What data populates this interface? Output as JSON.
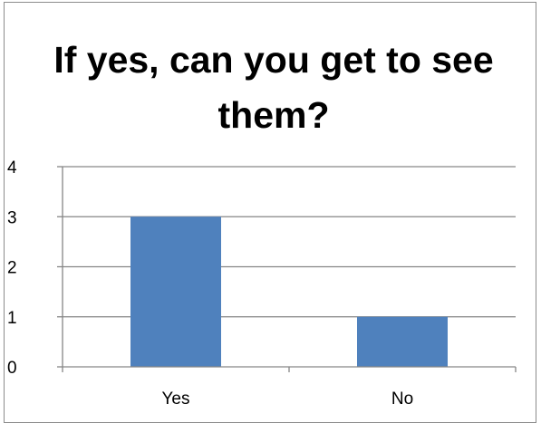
{
  "chart_data": {
    "type": "bar",
    "title": "If yes, can you get to see them?",
    "categories": [
      "Yes",
      "No"
    ],
    "values": [
      3,
      1
    ],
    "xlabel": "",
    "ylabel": "",
    "ylim": [
      0,
      4
    ],
    "yticks": [
      0,
      1,
      2,
      3,
      4
    ],
    "grid": true,
    "legend": "none",
    "bar_color": "#4f81bd",
    "grid_color": "#868686"
  }
}
